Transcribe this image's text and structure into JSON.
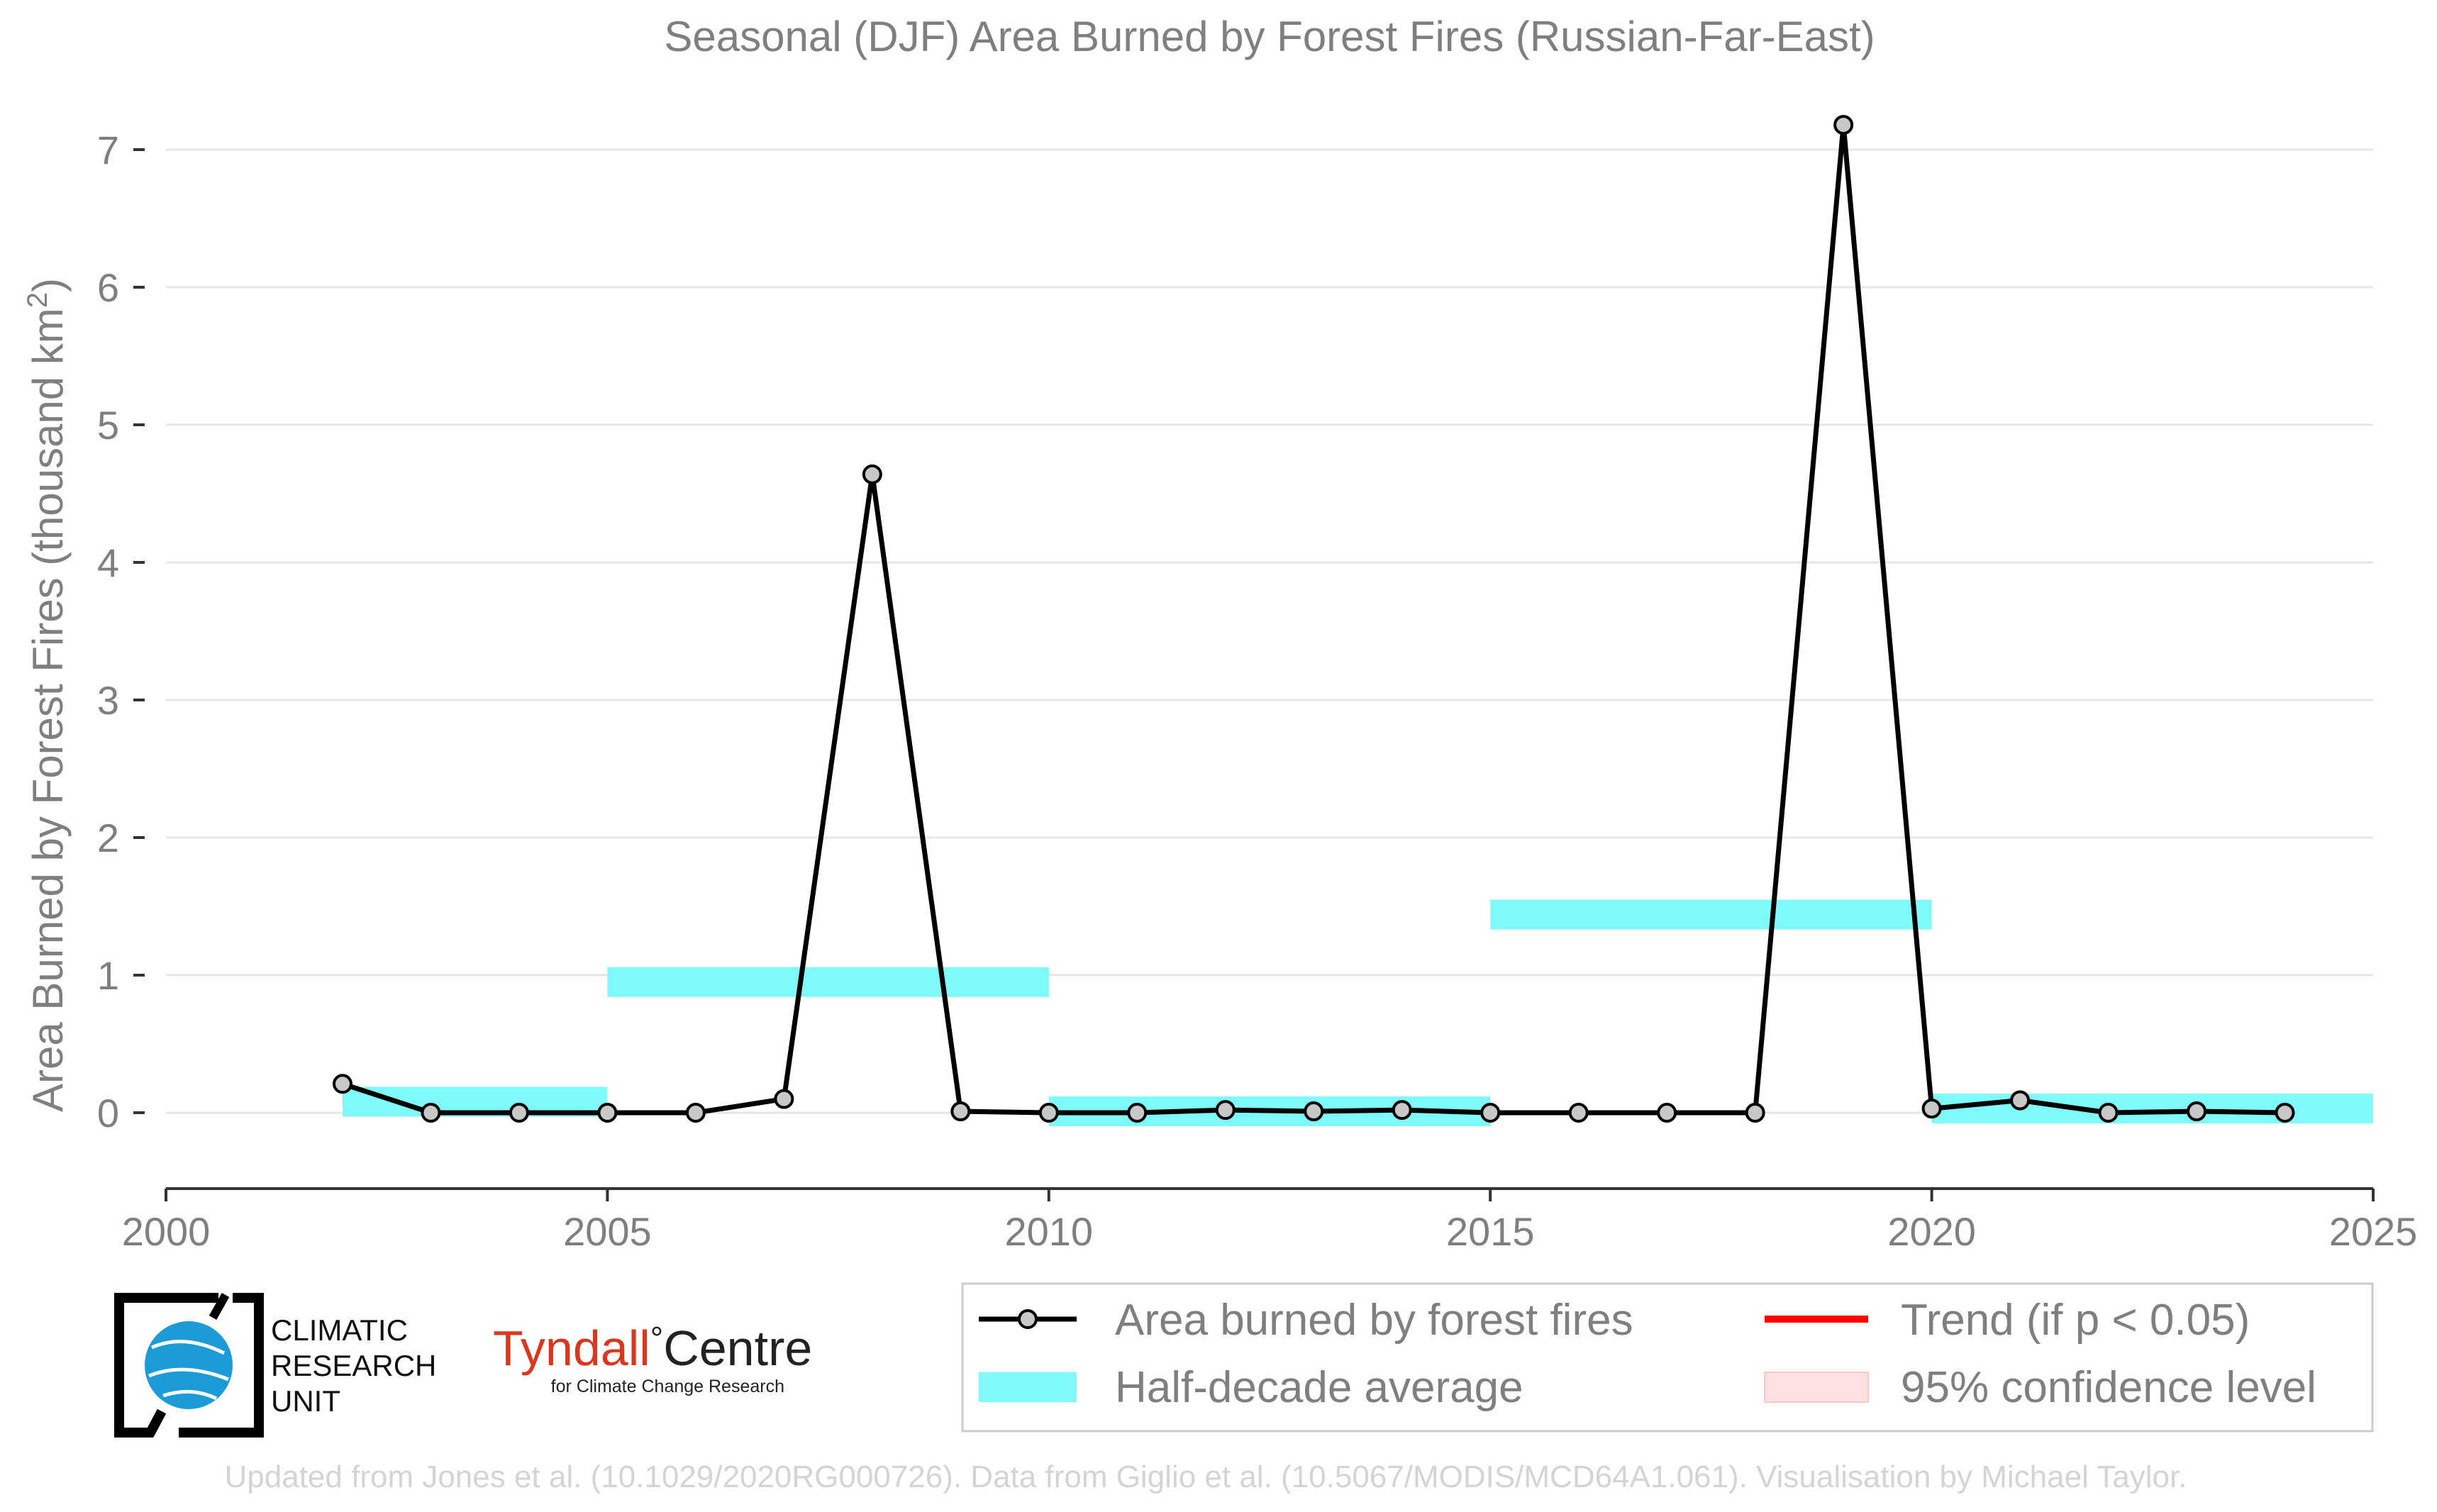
{
  "chart_data": {
    "type": "line",
    "title": "Seasonal (DJF) Area Burned by Forest Fires (Russian-Far-East)",
    "ylabel": "Area Burned by Forest Fires (thousand km",
    "ylabel_superscript": "2",
    "ylabel_close": ")",
    "xlabel": "",
    "xlim": [
      2000,
      2025
    ],
    "ylim": [
      -0.55,
      7.4
    ],
    "x_ticks": [
      2000,
      2005,
      2010,
      2015,
      2020,
      2025
    ],
    "y_ticks": [
      0,
      1,
      2,
      3,
      4,
      5,
      6,
      7
    ],
    "grid": "horizontal",
    "colors": {
      "line": "#000000",
      "marker_fill": "#c8c8c8",
      "half_decade": "#7ff9fa",
      "trend": "#ff0000",
      "confidence": "#ffe0e0",
      "grid": "#e6e6e6",
      "text": "#7f7f7f"
    },
    "series": [
      {
        "name": "Area burned by forest fires",
        "x": [
          2002,
          2003,
          2004,
          2005,
          2006,
          2007,
          2008,
          2009,
          2010,
          2011,
          2012,
          2013,
          2014,
          2015,
          2016,
          2017,
          2018,
          2019,
          2020,
          2021,
          2022,
          2023,
          2024
        ],
        "y": [
          0.21,
          0.0,
          0.0,
          0.0,
          0.0,
          0.1,
          4.64,
          0.01,
          0.0,
          0.0,
          0.02,
          0.01,
          0.02,
          0.0,
          0.0,
          0.0,
          0.0,
          7.18,
          0.03,
          0.09,
          0.0,
          0.01,
          0.0
        ]
      }
    ],
    "half_decade_average": {
      "name": "Half-decade average",
      "segments": [
        {
          "x0": 2002,
          "x1": 2005,
          "value": 0.08
        },
        {
          "x0": 2005,
          "x1": 2010,
          "value": 0.95
        },
        {
          "x0": 2010,
          "x1": 2015,
          "value": 0.01
        },
        {
          "x0": 2015,
          "x1": 2020,
          "value": 1.44
        },
        {
          "x0": 2020,
          "x1": 2025,
          "value": 0.03
        }
      ]
    },
    "legend": {
      "placement": "bottom-right",
      "entries": [
        {
          "label": "Area burned by forest fires",
          "kind": "line-marker"
        },
        {
          "label": "Trend (if p < 0.05)",
          "kind": "line-red"
        },
        {
          "label": "Half-decade average",
          "kind": "band"
        },
        {
          "label": "95% confidence level",
          "kind": "ci"
        }
      ]
    }
  },
  "logos": {
    "cru_lines": [
      "CLIMATIC",
      "RESEARCH",
      "UNIT"
    ],
    "tyndall_name": "Tyndall",
    "tyndall_degree": "°",
    "tyndall_centre": "Centre",
    "tyndall_sub": "for Climate Change Research"
  },
  "footer": "Updated from Jones et al. (10.1029/2020RG000726). Data from Giglio et al. (10.5067/MODIS/MCD64A1.061). Visualisation by Michael Taylor."
}
